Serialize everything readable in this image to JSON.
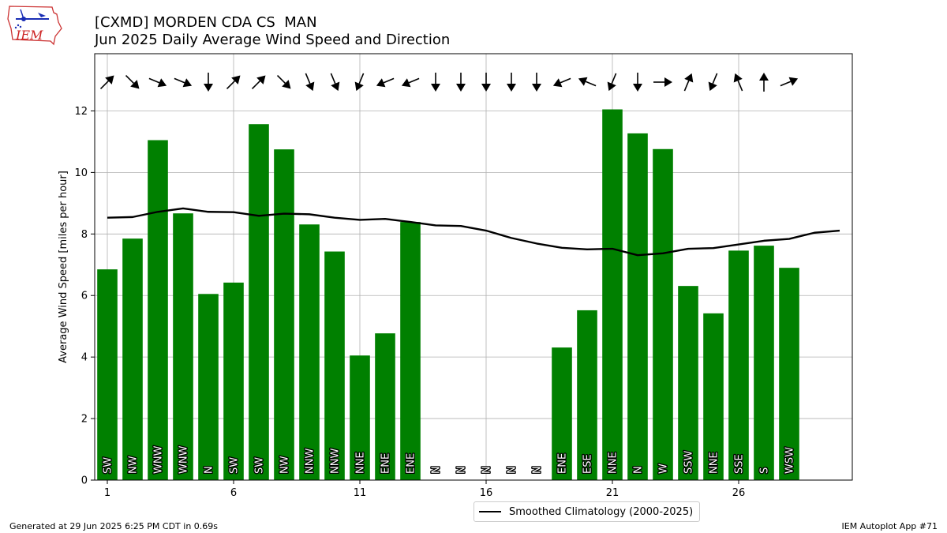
{
  "header": {
    "title_line1": "[CXMD] MORDEN CDA CS  MAN",
    "title_line2": "Jun 2025 Daily Average Wind Speed and Direction"
  },
  "logo": {
    "text": "IEM",
    "icon": "iem-logo-icon"
  },
  "footer": {
    "left": "Generated at 29 Jun 2025 6:25 PM CDT in 0.69s",
    "right": "IEM Autoplot App #71"
  },
  "legend": {
    "label": "Smoothed Climatology (2000-2025)"
  },
  "colors": {
    "bar": "#008000",
    "line": "#000000",
    "grid": "#b0b0b0"
  },
  "chart_data": {
    "type": "bar",
    "ylabel": "Average Wind Speed [miles per hour]",
    "xlabel": "",
    "xlim": [
      0.5,
      30.5
    ],
    "ylim": [
      0,
      13.86
    ],
    "xticks": [
      1,
      6,
      11,
      16,
      21,
      26
    ],
    "yticks": [
      0,
      2,
      4,
      6,
      8,
      10,
      12
    ],
    "grid": true,
    "legend_position": "bottom-center, below plot",
    "days": [
      1,
      2,
      3,
      4,
      5,
      6,
      7,
      8,
      9,
      10,
      11,
      12,
      13,
      14,
      15,
      16,
      17,
      18,
      19,
      20,
      21,
      22,
      23,
      24,
      25,
      26,
      27,
      28
    ],
    "speeds": [
      6.85,
      7.85,
      11.05,
      8.67,
      6.05,
      6.42,
      11.57,
      10.75,
      8.31,
      7.43,
      4.05,
      4.77,
      8.39,
      0,
      0,
      0,
      0,
      0,
      4.31,
      5.52,
      12.05,
      11.27,
      10.76,
      6.31,
      5.42,
      7.46,
      7.62,
      6.9
    ],
    "dir_labels": [
      "SW",
      "NW",
      "WNW",
      "WNW",
      "N",
      "SW",
      "SW",
      "NW",
      "NNW",
      "NNW",
      "NNE",
      "ENE",
      "ENE",
      "N",
      "N",
      "N",
      "N",
      "N",
      "ENE",
      "ESE",
      "NNE",
      "N",
      "W",
      "SSW",
      "NNE",
      "SSE",
      "S",
      "WSW"
    ],
    "arrow_directions_deg": [
      225,
      315,
      292.5,
      292.5,
      0,
      225,
      225,
      315,
      337.5,
      337.5,
      22.5,
      67.5,
      67.5,
      0,
      0,
      0,
      0,
      0,
      67.5,
      112.5,
      22.5,
      0,
      270,
      202.5,
      22.5,
      157.5,
      180,
      247.5
    ],
    "climatology": {
      "name": "Smoothed Climatology (2000-2025)",
      "x": [
        1,
        2,
        3,
        4,
        5,
        6,
        7,
        8,
        9,
        10,
        11,
        12,
        13,
        14,
        15,
        16,
        17,
        18,
        19,
        20,
        21,
        22,
        23,
        24,
        25,
        26,
        27,
        28,
        29,
        30
      ],
      "y": [
        8.53,
        8.55,
        8.72,
        8.83,
        8.72,
        8.71,
        8.59,
        8.66,
        8.64,
        8.53,
        8.46,
        8.49,
        8.39,
        8.28,
        8.26,
        8.11,
        7.87,
        7.69,
        7.55,
        7.5,
        7.52,
        7.31,
        7.37,
        7.52,
        7.54,
        7.66,
        7.78,
        7.84,
        8.04,
        8.11
      ]
    }
  }
}
